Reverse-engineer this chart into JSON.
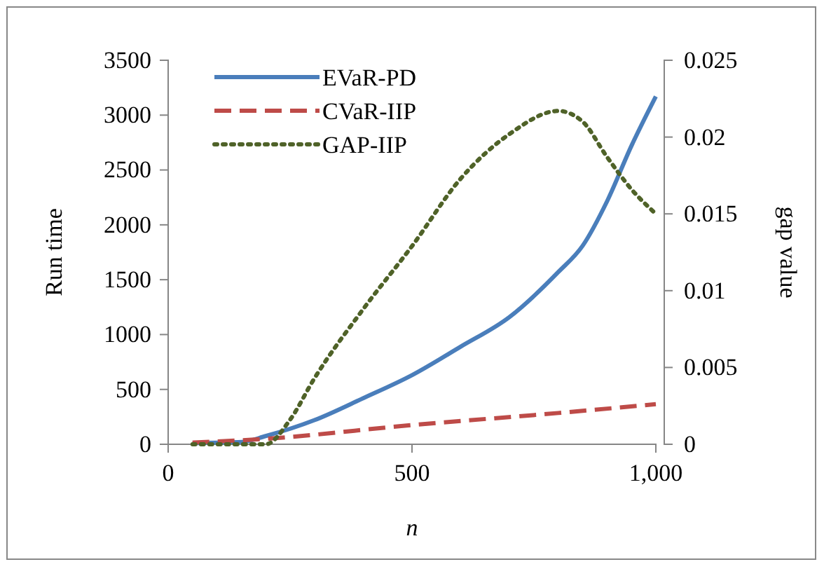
{
  "chart_data": {
    "type": "line",
    "xlabel": "n",
    "ylabel": "Run time",
    "y2label": "gap value",
    "xlim": [
      0,
      1000
    ],
    "xticks": [
      0,
      500,
      {
        "value": 1000,
        "label": "1,000"
      }
    ],
    "ylim": [
      0,
      3500
    ],
    "yticks": [
      0,
      500,
      1000,
      1500,
      2000,
      2500,
      3000,
      3500
    ],
    "y2lim": [
      0,
      0.025
    ],
    "y2ticks": [
      0,
      0.005,
      0.01,
      0.015,
      0.02,
      0.025
    ],
    "grid": false,
    "legend": "top left",
    "marker": "none",
    "series": [
      {
        "name": "EVaR-PD",
        "color": "#4a7ebb",
        "line_style": "solid",
        "x": [
          50,
          100,
          150,
          200,
          300,
          400,
          500,
          600,
          700,
          800,
          850,
          900,
          950,
          1000
        ],
        "values": [
          10,
          15,
          20,
          75,
          220,
          420,
          630,
          890,
          1160,
          1570,
          1810,
          2215,
          2720,
          3170
        ]
      },
      {
        "name": "CVaR-IIP",
        "color": "#be4b48",
        "line_style": "dashed",
        "x": [
          50,
          200,
          500,
          800,
          1000
        ],
        "values": [
          15,
          50,
          175,
          285,
          365
        ]
      },
      {
        "name": "GAP-IIP",
        "color": "#4f6228",
        "line_style": "dotted",
        "axis": "y2",
        "x": [
          50,
          100,
          150,
          200,
          250,
          300,
          400,
          500,
          600,
          700,
          800,
          850,
          900,
          950,
          1000
        ],
        "values": [
          0,
          0,
          0,
          0,
          0.0016,
          0.0043,
          0.0088,
          0.0129,
          0.0173,
          0.0202,
          0.0217,
          0.021,
          0.0187,
          0.0166,
          0.015
        ]
      }
    ]
  }
}
